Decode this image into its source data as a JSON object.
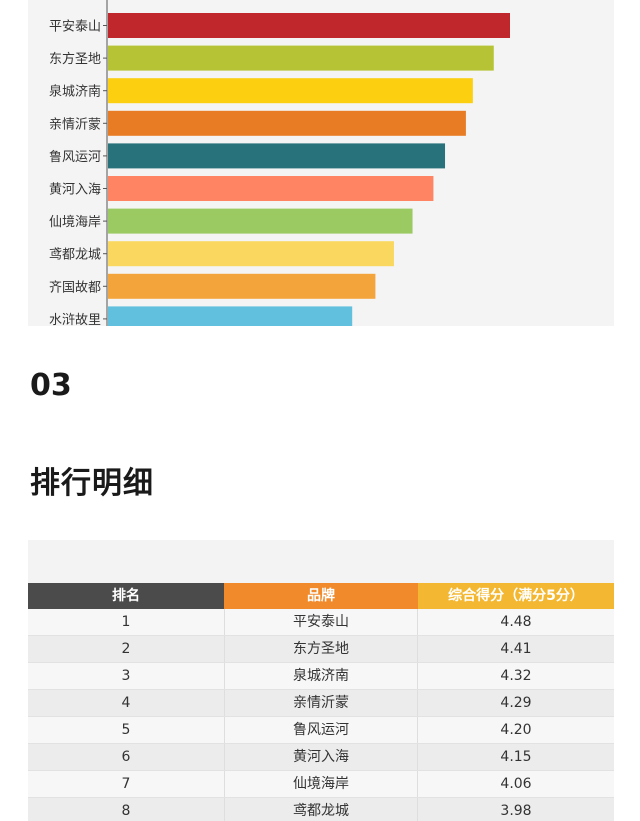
{
  "chart_data": {
    "type": "bar",
    "orientation": "horizontal",
    "categories": [
      "平安泰山",
      "东方圣地",
      "泉城济南",
      "亲情沂蒙",
      "鲁风运河",
      "黄河入海",
      "仙境海岸",
      "鸢都龙城",
      "齐国故都",
      "水浒故里"
    ],
    "values": [
      4.48,
      4.41,
      4.32,
      4.29,
      4.2,
      4.15,
      4.06,
      3.98,
      3.9,
      3.8
    ],
    "colors": [
      "#c0272d",
      "#b5c334",
      "#fccf10",
      "#e87c25",
      "#27727b",
      "#fe8463",
      "#9bca63",
      "#fad860",
      "#f3a43b",
      "#60c0dd"
    ],
    "title": "",
    "xlabel": "",
    "ylabel": ""
  },
  "section": {
    "number": "03",
    "title": "排行明细"
  },
  "table": {
    "headers": {
      "rank": "排名",
      "brand": "品牌",
      "score": "综合得分（满分5分）"
    },
    "rows": [
      {
        "rank": "1",
        "brand": "平安泰山",
        "score": "4.48"
      },
      {
        "rank": "2",
        "brand": "东方圣地",
        "score": "4.41"
      },
      {
        "rank": "3",
        "brand": "泉城济南",
        "score": "4.32"
      },
      {
        "rank": "4",
        "brand": "亲情沂蒙",
        "score": "4.29"
      },
      {
        "rank": "5",
        "brand": "鲁风运河",
        "score": "4.20"
      },
      {
        "rank": "6",
        "brand": "黄河入海",
        "score": "4.15"
      },
      {
        "rank": "7",
        "brand": "仙境海岸",
        "score": "4.06"
      },
      {
        "rank": "8",
        "brand": "鸢都龙城",
        "score": "3.98"
      }
    ]
  }
}
